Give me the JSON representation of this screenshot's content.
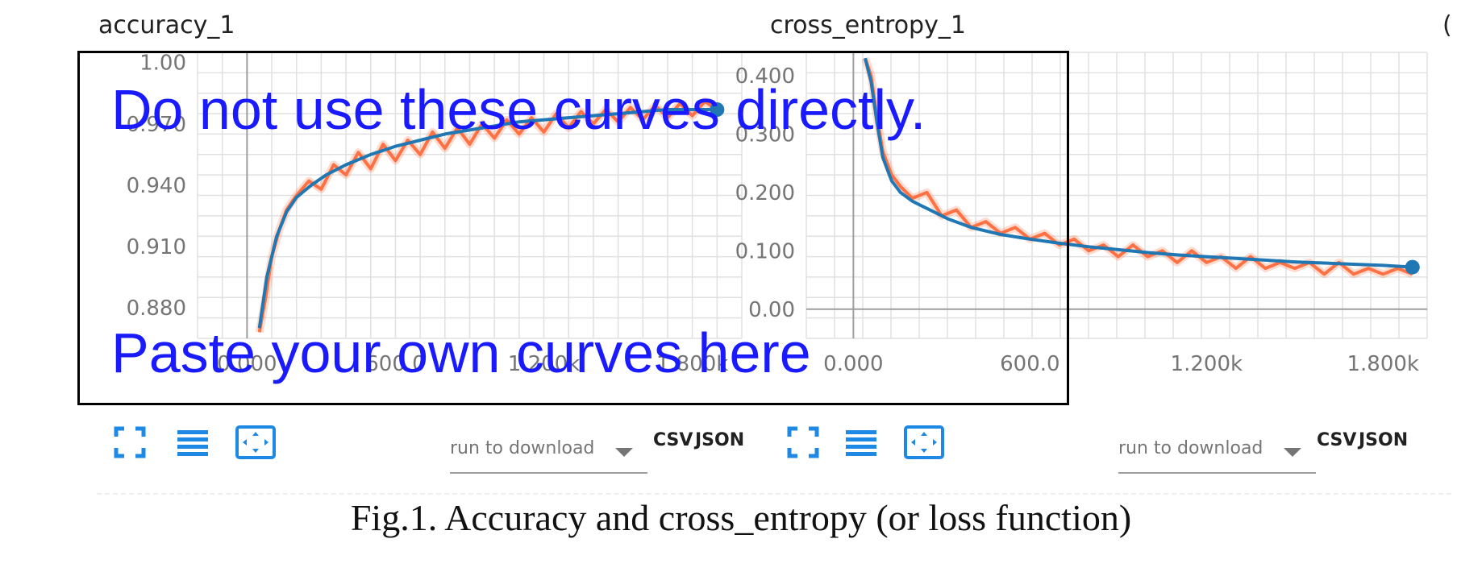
{
  "panels": [
    {
      "title": "accuracy_1",
      "toolbar": {
        "run_select_placeholder": "run to download",
        "csv_label": "CSV",
        "json_label": "JSON"
      }
    },
    {
      "title": "cross_entropy_1",
      "toolbar": {
        "run_select_placeholder": "run to download",
        "csv_label": "CSV",
        "json_label": "JSON"
      }
    }
  ],
  "right_edge_mark": "(",
  "overlay": {
    "line1": "Do not use these curves directly.",
    "line2": "Paste your own curves here"
  },
  "caption": "Fig.1.  Accuracy and cross_entropy (or loss function)",
  "colors": {
    "raw_series": "#ff7043",
    "smoothed_series": "#1f77b4",
    "overlay_text": "#1a1aff",
    "grid": "#e0e0e0"
  },
  "icons": [
    "fit-domain-icon",
    "toggle-log-icon",
    "expand-icon"
  ],
  "chart_data": [
    {
      "type": "line",
      "title": "accuracy_1",
      "xlabel": "",
      "ylabel": "",
      "x_tick_labels": [
        "0.000",
        "600.0",
        "1.200k",
        "1.800k"
      ],
      "x_ticks": [
        0,
        600,
        1200,
        1800
      ],
      "y_tick_labels": [
        "0.880",
        "0.910",
        "0.940",
        "0.970",
        "1.00"
      ],
      "y_ticks": [
        0.88,
        0.91,
        0.94,
        0.97,
        1.0
      ],
      "xlim": [
        -200,
        2000
      ],
      "ylim": [
        0.865,
        1.005
      ],
      "grid": true,
      "series": [
        {
          "name": "",
          "style": "raw",
          "x": [
            50,
            75,
            100,
            130,
            160,
            200,
            250,
            300,
            350,
            400,
            450,
            500,
            550,
            600,
            650,
            700,
            750,
            800,
            850,
            900,
            950,
            1000,
            1050,
            1100,
            1150,
            1200,
            1250,
            1300,
            1350,
            1400,
            1450,
            1500,
            1550,
            1600,
            1650,
            1700,
            1750,
            1800,
            1850,
            1900
          ],
          "y": [
            0.868,
            0.885,
            0.905,
            0.918,
            0.928,
            0.935,
            0.942,
            0.938,
            0.95,
            0.945,
            0.956,
            0.948,
            0.96,
            0.952,
            0.962,
            0.955,
            0.966,
            0.958,
            0.968,
            0.96,
            0.97,
            0.963,
            0.972,
            0.965,
            0.973,
            0.966,
            0.975,
            0.968,
            0.976,
            0.97,
            0.977,
            0.971,
            0.978,
            0.972,
            0.979,
            0.973,
            0.98,
            0.974,
            0.981,
            0.977
          ]
        },
        {
          "name": "",
          "style": "smoothed",
          "x": [
            50,
            80,
            120,
            160,
            200,
            260,
            320,
            400,
            500,
            600,
            700,
            800,
            900,
            1000,
            1100,
            1200,
            1300,
            1400,
            1500,
            1600,
            1700,
            1800,
            1900
          ],
          "y": [
            0.87,
            0.895,
            0.915,
            0.927,
            0.934,
            0.94,
            0.945,
            0.95,
            0.955,
            0.959,
            0.962,
            0.965,
            0.967,
            0.969,
            0.971,
            0.972,
            0.973,
            0.974,
            0.975,
            0.976,
            0.977,
            0.977,
            0.977
          ]
        }
      ]
    },
    {
      "type": "line",
      "title": "cross_entropy_1",
      "xlabel": "",
      "ylabel": "",
      "x_tick_labels": [
        "0.000",
        "600.0",
        "1.200k",
        "1.800k"
      ],
      "x_ticks": [
        0,
        600,
        1200,
        1800
      ],
      "y_tick_labels": [
        "0.00",
        "0.100",
        "0.200",
        "0.300",
        "0.400"
      ],
      "y_ticks": [
        0.0,
        0.1,
        0.2,
        0.3,
        0.4
      ],
      "xlim": [
        -160,
        1950
      ],
      "ylim": [
        -0.05,
        0.44
      ],
      "grid": true,
      "series": [
        {
          "name": "",
          "style": "raw",
          "x": [
            40,
            60,
            80,
            100,
            130,
            160,
            200,
            250,
            300,
            350,
            400,
            450,
            500,
            550,
            600,
            650,
            700,
            750,
            800,
            850,
            900,
            950,
            1000,
            1050,
            1100,
            1150,
            1200,
            1250,
            1300,
            1350,
            1400,
            1450,
            1500,
            1550,
            1600,
            1650,
            1700,
            1750,
            1800,
            1850,
            1900
          ],
          "y": [
            0.43,
            0.4,
            0.33,
            0.27,
            0.23,
            0.21,
            0.19,
            0.2,
            0.16,
            0.17,
            0.14,
            0.15,
            0.13,
            0.14,
            0.12,
            0.13,
            0.11,
            0.12,
            0.1,
            0.11,
            0.09,
            0.11,
            0.09,
            0.1,
            0.08,
            0.1,
            0.08,
            0.09,
            0.07,
            0.09,
            0.07,
            0.08,
            0.07,
            0.08,
            0.06,
            0.08,
            0.06,
            0.07,
            0.06,
            0.07,
            0.06
          ]
        },
        {
          "name": "",
          "style": "smoothed",
          "x": [
            40,
            60,
            80,
            100,
            130,
            160,
            200,
            260,
            320,
            400,
            500,
            600,
            700,
            800,
            900,
            1000,
            1100,
            1200,
            1300,
            1400,
            1500,
            1600,
            1700,
            1800,
            1900
          ],
          "y": [
            0.43,
            0.39,
            0.32,
            0.26,
            0.22,
            0.2,
            0.185,
            0.17,
            0.155,
            0.14,
            0.128,
            0.12,
            0.113,
            0.107,
            0.102,
            0.097,
            0.093,
            0.09,
            0.087,
            0.084,
            0.081,
            0.079,
            0.077,
            0.075,
            0.072
          ]
        }
      ]
    }
  ]
}
